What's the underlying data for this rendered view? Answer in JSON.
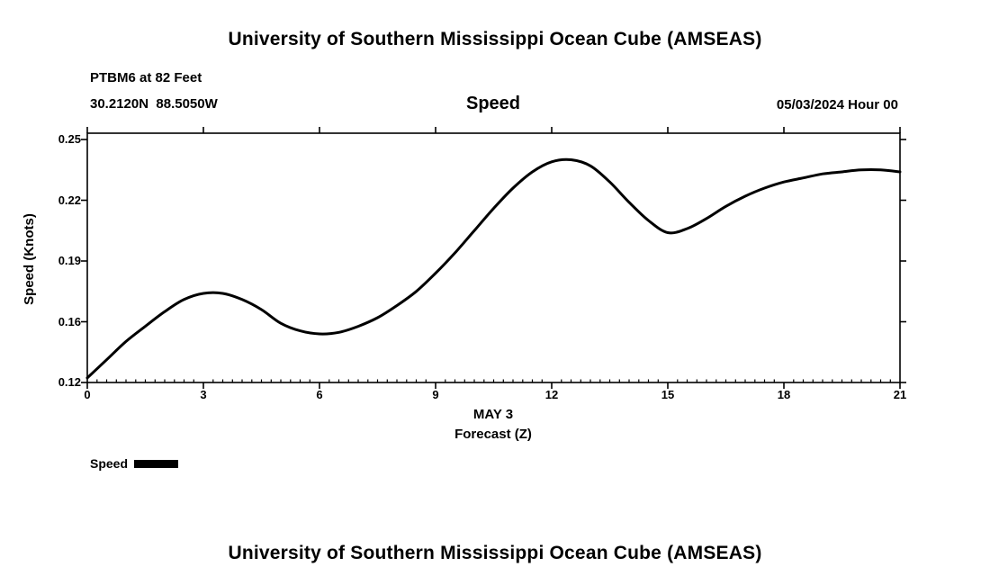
{
  "header": {
    "title": "University of Southern Mississippi Ocean Cube (AMSEAS)",
    "station": "PTBM6 at 82 Feet",
    "coords": "30.2120N  88.5050W",
    "plot_title": "Speed",
    "datetime": "05/03/2024 Hour 00"
  },
  "axes": {
    "y_label": "Speed (Knots)",
    "y_tick_labels": [
      "0.25",
      "0.22",
      "0.19",
      "0.16",
      "0.12"
    ],
    "x_tick_labels": [
      "0",
      "3",
      "6",
      "9",
      "12",
      "15",
      "18",
      "21"
    ],
    "x_label_line1": "MAY 3",
    "x_label_line2": "Forecast (Z)"
  },
  "legend": {
    "label": "Speed"
  },
  "footer": {
    "title": "University of Southern Mississippi Ocean Cube (AMSEAS)"
  },
  "chart_data": {
    "type": "line",
    "title": "Speed",
    "xlabel": "Forecast (Z), MAY 3",
    "ylabel": "Speed (Knots)",
    "xlim": [
      0,
      21
    ],
    "x_ticks": [
      0,
      3,
      6,
      9,
      12,
      15,
      18,
      21
    ],
    "y_tick_values": [
      0.25,
      0.22,
      0.19,
      0.16,
      0.12
    ],
    "grid": false,
    "legend_position": "bottom-left",
    "color": "#000000",
    "series": [
      {
        "name": "Speed",
        "x": [
          0,
          0.5,
          1,
          1.5,
          2,
          2.5,
          3,
          3.5,
          4,
          4.5,
          5,
          5.5,
          6,
          6.5,
          7,
          7.5,
          8,
          8.5,
          9,
          9.5,
          10,
          10.5,
          11,
          11.5,
          12,
          12.5,
          13,
          13.5,
          14,
          14.5,
          15,
          15.5,
          16,
          16.5,
          17,
          17.5,
          18,
          18.5,
          19,
          19.5,
          20,
          20.5,
          21
        ],
        "values": [
          0.123,
          0.135,
          0.147,
          0.157,
          0.165,
          0.171,
          0.174,
          0.174,
          0.171,
          0.166,
          0.159,
          0.154,
          0.152,
          0.153,
          0.157,
          0.162,
          0.168,
          0.175,
          0.184,
          0.194,
          0.205,
          0.216,
          0.226,
          0.234,
          0.239,
          0.24,
          0.237,
          0.229,
          0.219,
          0.21,
          0.204,
          0.206,
          0.211,
          0.217,
          0.222,
          0.226,
          0.229,
          0.231,
          0.233,
          0.234,
          0.235,
          0.235,
          0.234
        ]
      }
    ]
  }
}
